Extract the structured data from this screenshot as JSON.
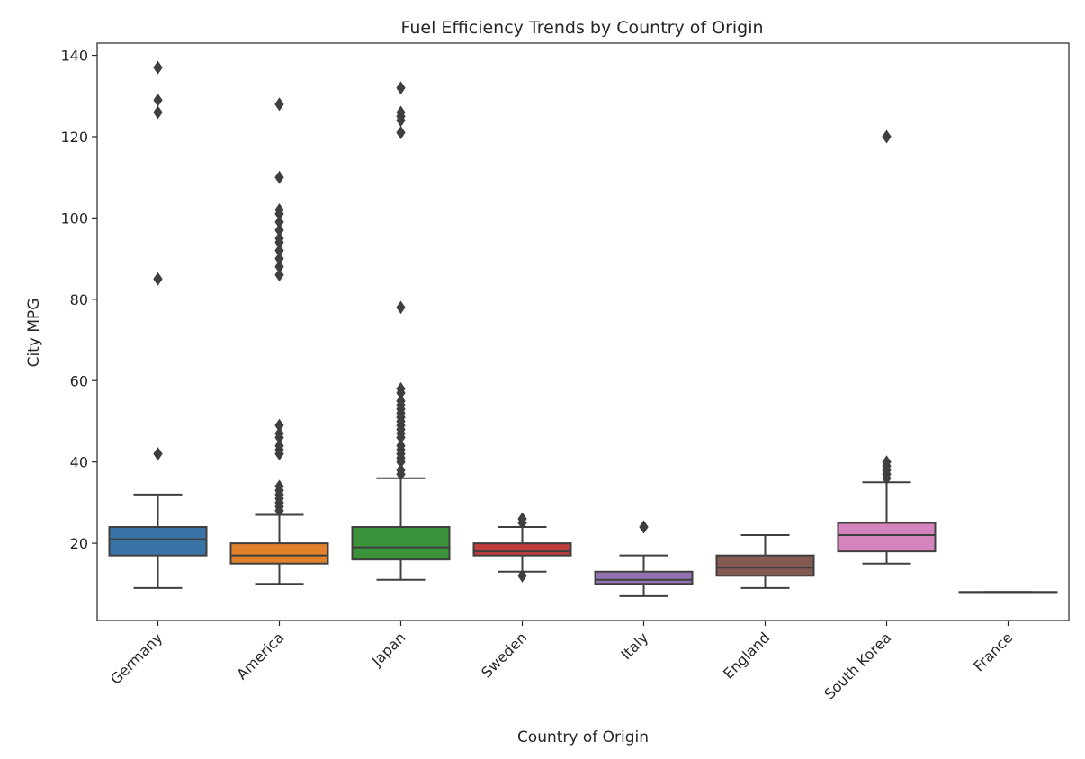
{
  "chart_data": {
    "type": "box",
    "title": "Fuel Efficiency Trends by Country of Origin",
    "xlabel": "Country of Origin",
    "ylabel": "City MPG",
    "ylim": [
      1,
      143
    ],
    "yticks": [
      20,
      40,
      60,
      80,
      100,
      120,
      140
    ],
    "grid": false,
    "categories": [
      "Germany",
      "America",
      "Japan",
      "Sweden",
      "Italy",
      "England",
      "South Korea",
      "France"
    ],
    "colors": [
      "#3a74a7",
      "#e1812c",
      "#3a923a",
      "#c03d3e",
      "#9372b2",
      "#845b53",
      "#d684bd",
      "#7f7f7f"
    ],
    "series": [
      {
        "category": "Germany",
        "whisker_low": 9,
        "q1": 17,
        "median": 21,
        "q3": 24,
        "whisker_high": 32,
        "outliers": [
          42,
          42,
          85,
          85,
          126,
          126,
          129,
          137,
          137
        ]
      },
      {
        "category": "America",
        "whisker_low": 10,
        "q1": 15,
        "median": 17,
        "q3": 20,
        "whisker_high": 27,
        "outliers": [
          28,
          29,
          30,
          31,
          32,
          33,
          34,
          42,
          43,
          44,
          46,
          47,
          49,
          86,
          88,
          90,
          92,
          94,
          95,
          97,
          99,
          101,
          102,
          110,
          128,
          128
        ]
      },
      {
        "category": "Japan",
        "whisker_low": 11,
        "q1": 16,
        "median": 19,
        "q3": 24,
        "whisker_high": 36,
        "outliers": [
          37,
          38,
          40,
          41,
          42,
          43,
          44,
          46,
          47,
          48,
          49,
          50,
          51,
          52,
          53,
          54,
          55,
          57,
          58,
          78,
          121,
          124,
          125,
          126,
          132
        ]
      },
      {
        "category": "Sweden",
        "whisker_low": 13,
        "q1": 17,
        "median": 18,
        "q3": 20,
        "whisker_high": 24,
        "outliers": [
          12,
          12,
          25,
          26
        ]
      },
      {
        "category": "Italy",
        "whisker_low": 7,
        "q1": 10,
        "median": 11,
        "q3": 13,
        "whisker_high": 17,
        "outliers": [
          24,
          24
        ]
      },
      {
        "category": "England",
        "whisker_low": 9,
        "q1": 12,
        "median": 14,
        "q3": 17,
        "whisker_high": 22,
        "outliers": []
      },
      {
        "category": "South Korea",
        "whisker_low": 15,
        "q1": 18,
        "median": 22,
        "q3": 25,
        "whisker_high": 35,
        "outliers": [
          36,
          37,
          38,
          39,
          40,
          120,
          120
        ]
      },
      {
        "category": "France",
        "whisker_low": 8,
        "q1": 8,
        "median": 8,
        "q3": 8,
        "whisker_high": 8,
        "outliers": []
      }
    ]
  }
}
